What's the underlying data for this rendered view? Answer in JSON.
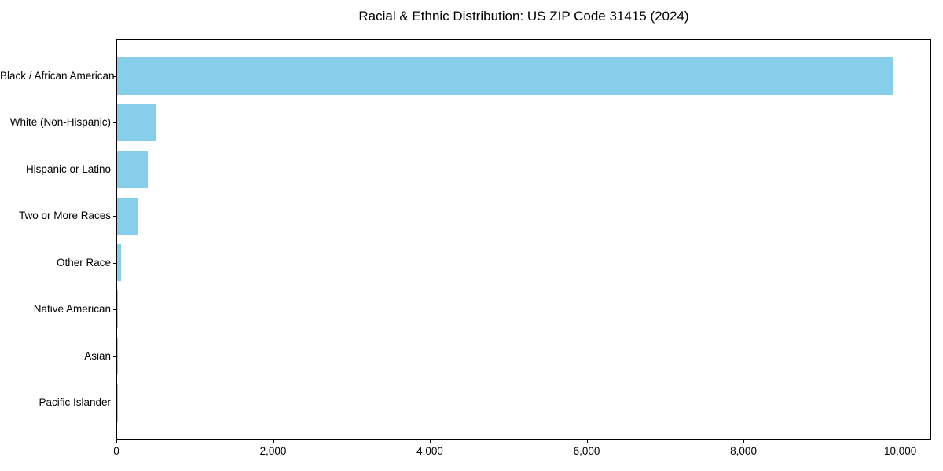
{
  "chart_data": {
    "type": "bar",
    "orientation": "horizontal",
    "title": "Racial & Ethnic Distribution: US ZIP Code 31415 (2024)",
    "categories": [
      "Black / African American",
      "White (Non-Hispanic)",
      "Hispanic or Latino",
      "Two or More Races",
      "Other Race",
      "Native American",
      "Asian",
      "Pacific Islander"
    ],
    "values": [
      9900,
      490,
      390,
      260,
      50,
      15,
      8,
      3
    ],
    "xlabel": "",
    "ylabel": "",
    "xlim": [
      0,
      10395
    ],
    "x_ticks": [
      0,
      2000,
      4000,
      6000,
      8000,
      10000
    ],
    "x_tick_labels": [
      "0",
      "2,000",
      "4,000",
      "6,000",
      "8,000",
      "10,000"
    ],
    "bar_color": "#87CEEB",
    "grid": false,
    "legend_position": "none",
    "bar_height_ratio": 0.8
  },
  "colors": {
    "bar": "#87CEEB",
    "text": "#000000",
    "axis": "#000000",
    "background": "#ffffff"
  }
}
